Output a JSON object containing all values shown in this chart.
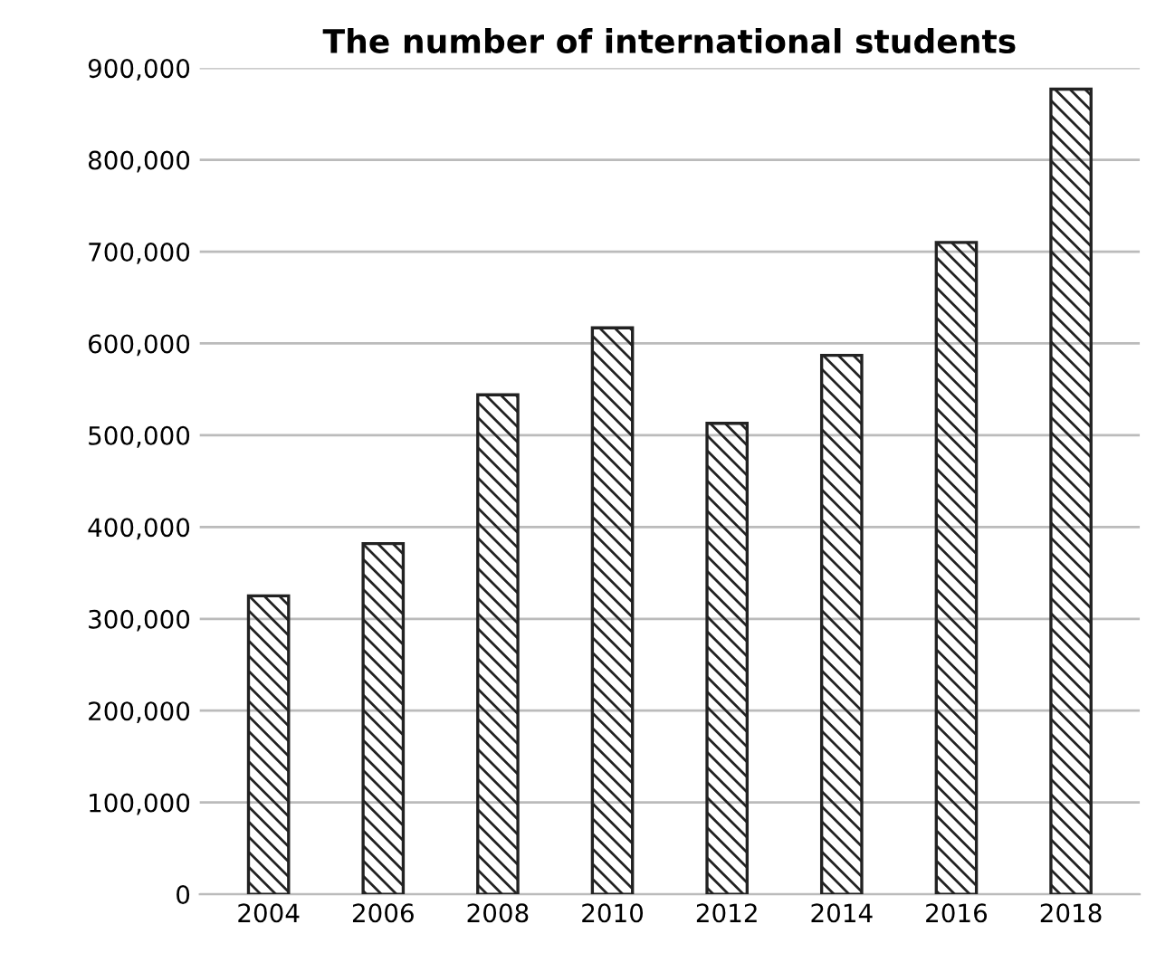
{
  "chart_data": {
    "type": "bar",
    "title": "The number of international students",
    "categories": [
      "2004",
      "2006",
      "2008",
      "2010",
      "2012",
      "2014",
      "2016",
      "2018"
    ],
    "values": [
      325000,
      382000,
      544000,
      617000,
      513000,
      587000,
      710000,
      877000
    ],
    "color": "#222222",
    "ylim": [
      0,
      900000
    ],
    "yticks": [
      {
        "value": 0,
        "label": "0"
      },
      {
        "value": 100000,
        "label": "100,000"
      },
      {
        "value": 200000,
        "label": "200,000"
      },
      {
        "value": 300000,
        "label": "300,000"
      },
      {
        "value": 400000,
        "label": "400,000"
      },
      {
        "value": 500000,
        "label": "500,000"
      },
      {
        "value": 600000,
        "label": "600,000"
      },
      {
        "value": 700000,
        "label": "700,000"
      },
      {
        "value": 800000,
        "label": "800,000"
      },
      {
        "value": 900000,
        "label": "900,000"
      }
    ],
    "grid": "y",
    "legend": false
  }
}
